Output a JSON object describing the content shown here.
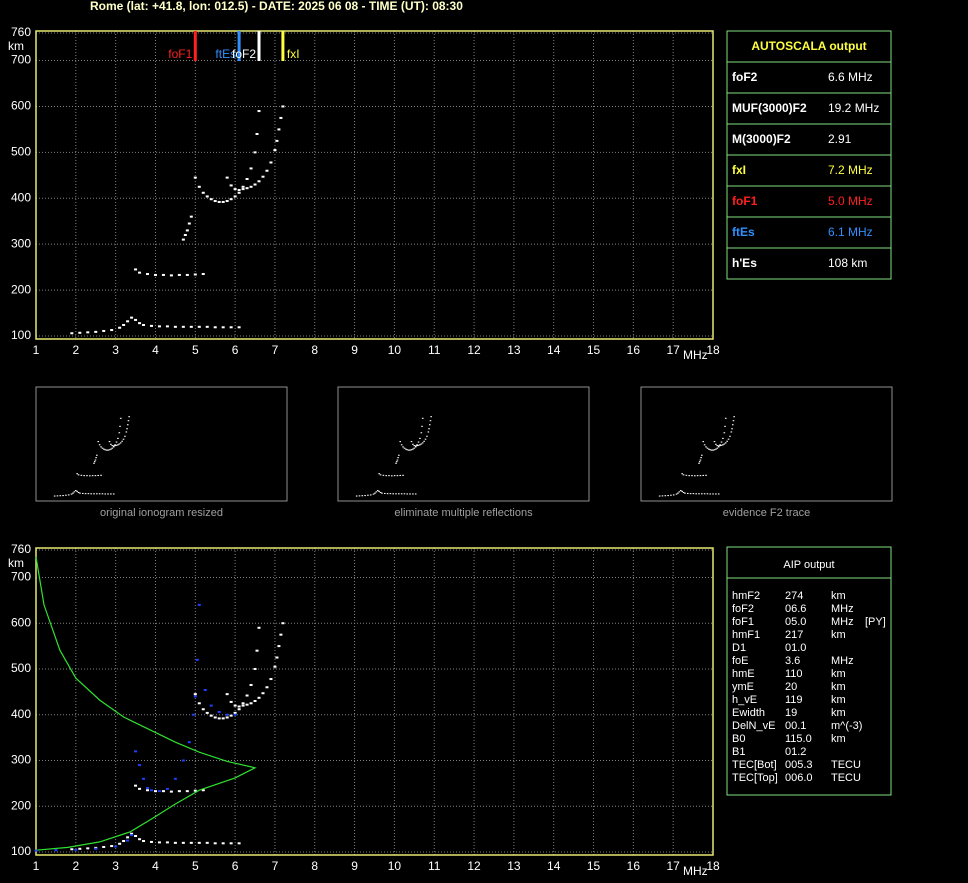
{
  "title": "Rome (lat: +41.8, lon: 012.5) - DATE: 2025 06 08 - TIME (UT): 08:30",
  "chart_data": [
    {
      "type": "scatter",
      "xlim": [
        1,
        18
      ],
      "xticks": [
        1,
        2,
        3,
        4,
        5,
        6,
        7,
        8,
        9,
        10,
        11,
        12,
        13,
        14,
        15,
        16,
        17,
        18
      ],
      "ylim": [
        100,
        760
      ],
      "yticks": [
        100,
        200,
        300,
        400,
        500,
        600,
        700,
        760
      ],
      "xlabel": "MHz",
      "ylabel": "km",
      "grid": true,
      "markers": [
        {
          "name": "foF1",
          "value": 5.0,
          "color": "#ff2020"
        },
        {
          "name": "ftEs",
          "value": 6.1,
          "color": "#3090ff"
        },
        {
          "name": "foF2",
          "value": 6.6,
          "color": "#ffffff"
        },
        {
          "name": "fxI",
          "value": 7.2,
          "color": "#ffff40"
        }
      ],
      "series": [
        {
          "type": "scatter",
          "color": "#ffffff",
          "x": [
            1.9,
            2.1,
            2.3,
            2.5,
            2.7,
            2.9,
            3.1,
            3.2,
            3.3,
            3.4,
            3.5,
            3.6,
            3.7,
            3.9,
            4.1,
            4.3,
            4.5,
            4.7,
            4.9,
            5.1,
            5.3,
            5.5,
            5.7,
            5.9,
            6.1
          ],
          "values": [
            106,
            107,
            108,
            109,
            111,
            113,
            118,
            124,
            132,
            140,
            135,
            128,
            124,
            122,
            121,
            121,
            120,
            120,
            120,
            120,
            120,
            119,
            119,
            119,
            119
          ]
        },
        {
          "type": "scatter",
          "color": "#ffffff",
          "x": [
            3.5,
            3.6,
            3.8,
            4.0,
            4.2,
            4.4,
            4.6,
            4.8,
            5.0,
            5.2
          ],
          "values": [
            245,
            238,
            235,
            233,
            233,
            232,
            233,
            233,
            234,
            235
          ]
        },
        {
          "type": "scatter",
          "color": "#ffffff",
          "x": [
            4.7,
            4.75,
            4.8,
            4.85,
            4.9
          ],
          "values": [
            310,
            320,
            330,
            345,
            360
          ]
        },
        {
          "type": "scatter",
          "color": "#ffffff",
          "x": [
            5.0,
            5.1,
            5.2,
            5.3,
            5.4,
            5.5,
            5.6,
            5.7,
            5.8,
            5.9,
            6.0,
            6.1,
            6.2,
            6.3,
            6.4,
            6.5,
            6.55,
            6.6
          ],
          "values": [
            445,
            425,
            412,
            404,
            398,
            394,
            392,
            392,
            394,
            398,
            404,
            412,
            425,
            442,
            465,
            500,
            540,
            590
          ]
        },
        {
          "type": "scatter",
          "color": "#ffffff",
          "x": [
            5.8,
            5.9,
            6.0,
            6.1,
            6.2,
            6.3,
            6.4,
            6.5,
            6.6,
            6.7,
            6.8,
            6.9,
            7.0,
            7.05,
            7.1,
            7.15,
            7.2
          ],
          "values": [
            445,
            428,
            420,
            418,
            420,
            422,
            425,
            430,
            437,
            447,
            460,
            478,
            505,
            525,
            550,
            575,
            600
          ]
        }
      ]
    },
    {
      "type": "scatter",
      "xlim": [
        1,
        18
      ],
      "xticks": [
        1,
        2,
        3,
        4,
        5,
        6,
        7,
        8,
        9,
        10,
        11,
        12,
        13,
        14,
        15,
        16,
        17,
        18
      ],
      "ylim": [
        100,
        760
      ],
      "yticks": [
        100,
        200,
        300,
        400,
        500,
        600,
        700,
        760
      ],
      "xlabel": "MHz",
      "ylabel": "km",
      "grid": true,
      "series": [
        {
          "type": "scatter",
          "color": "#ffffff",
          "x": [
            1.9,
            2.1,
            2.3,
            2.5,
            2.7,
            2.9,
            3.1,
            3.2,
            3.3,
            3.4,
            3.5,
            3.6,
            3.7,
            3.9,
            4.1,
            4.3,
            4.5,
            4.7,
            4.9,
            5.1,
            5.3,
            5.5,
            5.7,
            5.9,
            6.1
          ],
          "values": [
            106,
            107,
            108,
            109,
            111,
            113,
            118,
            124,
            132,
            140,
            135,
            128,
            124,
            122,
            121,
            121,
            120,
            120,
            120,
            120,
            120,
            119,
            119,
            119,
            119
          ]
        },
        {
          "type": "scatter",
          "color": "#ffffff",
          "x": [
            3.5,
            3.6,
            3.8,
            4.0,
            4.2,
            4.4,
            4.6,
            4.8,
            5.0,
            5.2
          ],
          "values": [
            245,
            238,
            235,
            233,
            233,
            232,
            233,
            233,
            234,
            235
          ]
        },
        {
          "type": "scatter",
          "color": "#ffffff",
          "x": [
            5.0,
            5.1,
            5.2,
            5.3,
            5.4,
            5.5,
            5.6,
            5.7,
            5.8,
            5.9,
            6.0,
            6.1,
            6.2,
            6.3,
            6.4,
            6.5,
            6.55,
            6.6
          ],
          "values": [
            445,
            425,
            412,
            404,
            398,
            394,
            392,
            392,
            394,
            398,
            404,
            412,
            425,
            442,
            465,
            500,
            540,
            590
          ]
        },
        {
          "type": "scatter",
          "color": "#ffffff",
          "x": [
            5.8,
            5.9,
            6.0,
            6.1,
            6.2,
            6.3,
            6.4,
            6.5,
            6.6,
            6.7,
            6.8,
            6.9,
            7.0,
            7.05,
            7.1,
            7.15,
            7.2
          ],
          "values": [
            445,
            428,
            420,
            418,
            420,
            422,
            425,
            430,
            437,
            447,
            460,
            478,
            505,
            525,
            550,
            575,
            600
          ]
        },
        {
          "type": "line",
          "color": "#30e030",
          "x": [
            1.0,
            1.2,
            1.6,
            2.0,
            2.6,
            3.2,
            3.86,
            4.5,
            5.1,
            5.8,
            6.5,
            6.0,
            5.1,
            4.5,
            3.86,
            3.36,
            2.6,
            1.8,
            1.0
          ],
          "values": [
            745,
            640,
            541,
            480,
            432,
            395,
            367,
            340,
            318,
            298,
            284,
            262,
            235,
            205,
            170,
            144,
            122,
            110,
            104
          ]
        },
        {
          "type": "scatter",
          "color": "#2040ff",
          "x": [
            1.0,
            1.5,
            2.0,
            2.5,
            3.0,
            3.3,
            3.4,
            3.5,
            3.6,
            3.7,
            3.8,
            3.9,
            4.1,
            4.3,
            4.5,
            4.7,
            4.85,
            4.95,
            5.0,
            5.05,
            5.1,
            5.25,
            5.4,
            5.6,
            5.8,
            6.0
          ],
          "values": [
            103,
            104,
            105,
            107,
            112,
            125,
            137,
            320,
            290,
            260,
            240,
            235,
            233,
            238,
            260,
            300,
            340,
            400,
            440,
            520,
            640,
            454,
            420,
            406,
            400,
            400
          ]
        }
      ]
    }
  ],
  "thumbnails": [
    "original ionogram resized",
    "eliminate multiple reflections",
    "evidence F2 trace"
  ],
  "autoscala": {
    "title": "AUTOSCALA output",
    "rows": [
      {
        "label": "foF2",
        "value": "6.6 MHz",
        "color": "#ffffff"
      },
      {
        "label": "MUF(3000)F2",
        "value": "19.2 MHz",
        "color": "#ffffff"
      },
      {
        "label": "M(3000)F2",
        "value": "2.91",
        "color": "#ffffff"
      },
      {
        "label": "fxI",
        "value": "7.2 MHz",
        "color": "#ffff40"
      },
      {
        "label": "foF1",
        "value": "5.0 MHz",
        "color": "#ff2020"
      },
      {
        "label": "ftEs",
        "value": "6.1 MHz",
        "color": "#3090ff"
      },
      {
        "label": "h'Es",
        "value": "108 km",
        "color": "#ffffff"
      }
    ]
  },
  "aip": {
    "title": "AIP output",
    "rows": [
      [
        "hmF2",
        "274",
        "km"
      ],
      [
        "foF2",
        "06.6",
        "MHz"
      ],
      [
        "foF1",
        "05.0",
        "MHz",
        "[PY]"
      ],
      [
        "hmF1",
        "217",
        "km"
      ],
      [
        "D1",
        "01.0"
      ],
      [
        "foE",
        "3.6",
        "MHz"
      ],
      [
        "hmE",
        "110",
        "km"
      ],
      [
        "ymE",
        "20",
        "km"
      ],
      [
        "h_vE",
        "119",
        "km"
      ],
      [
        "Ewidth",
        "19",
        "km"
      ],
      [
        "DelN_vE",
        "00.1",
        "m^(-3)"
      ],
      [
        "B0",
        "115.0",
        "km"
      ],
      [
        "B1",
        "01.2"
      ],
      [
        "TEC[Bot]",
        "005.3",
        "TECU"
      ],
      [
        "TEC[Top]",
        "006.0",
        "TECU"
      ]
    ]
  }
}
